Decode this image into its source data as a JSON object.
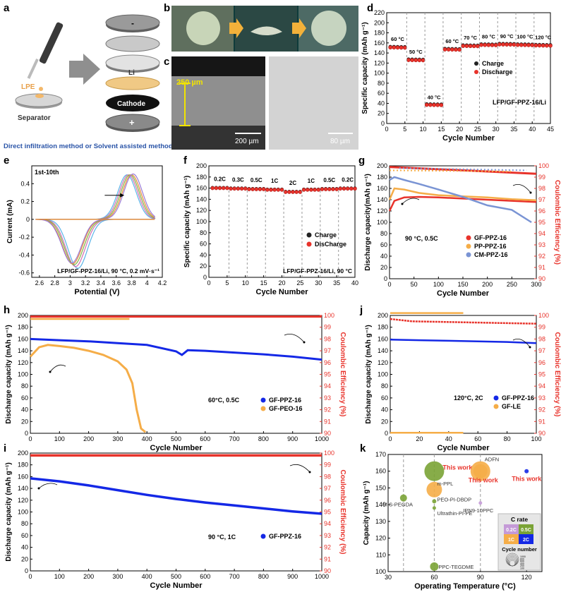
{
  "panels": {
    "a": {
      "letter": "a",
      "lpe": "LPE",
      "separator": "Separator",
      "li": "Li",
      "cathode": "Cathode",
      "minus": "-",
      "plus": "+",
      "caption": "Direct infiltration method or Solvent assisted method"
    },
    "b": {
      "letter": "b"
    },
    "c": {
      "letter": "c",
      "thickness": "250 µm",
      "scale_left": "200 µm",
      "scale_right": "80 µm"
    },
    "d": {
      "letter": "d"
    },
    "e": {
      "letter": "e"
    },
    "f": {
      "letter": "f"
    },
    "g": {
      "letter": "g"
    },
    "h": {
      "letter": "h"
    },
    "i": {
      "letter": "i"
    },
    "j": {
      "letter": "j"
    },
    "k": {
      "letter": "k"
    }
  },
  "chart_data": [
    {
      "id": "d",
      "type": "scatter",
      "ylabel": "Specific capacity (mAh g⁻¹)",
      "xlabel": "Cycle Number",
      "xlim": [
        0,
        45
      ],
      "ylim": [
        0,
        220
      ],
      "xticks": [
        0,
        5,
        10,
        15,
        20,
        25,
        30,
        35,
        40,
        45
      ],
      "yticks": [
        0,
        20,
        40,
        60,
        80,
        100,
        120,
        140,
        160,
        180,
        200,
        220
      ],
      "annotation": "LFP/GF-PPZ-16/Li",
      "legend": [
        "Charge",
        "Discharge"
      ],
      "segments": [
        {
          "label": "60 °C",
          "cycles": [
            1,
            5
          ],
          "value": 151
        },
        {
          "label": "50 °C",
          "cycles": [
            6,
            10
          ],
          "value": 126
        },
        {
          "label": "40 °C",
          "cycles": [
            11,
            15
          ],
          "value": 37
        },
        {
          "label": "60 °C",
          "cycles": [
            16,
            20
          ],
          "value": 147
        },
        {
          "label": "70 °C",
          "cycles": [
            21,
            25
          ],
          "value": 154
        },
        {
          "label": "80 °C",
          "cycles": [
            26,
            30
          ],
          "value": 156
        },
        {
          "label": "90 °C",
          "cycles": [
            31,
            35
          ],
          "value": 157
        },
        {
          "label": "100 °C",
          "cycles": [
            36,
            40
          ],
          "value": 156
        },
        {
          "label": "120 °C",
          "cycles": [
            41,
            45
          ],
          "value": 155
        }
      ]
    },
    {
      "id": "e",
      "type": "line",
      "ylabel": "Current (mA)",
      "xlabel": "Potential (V)",
      "xlim": [
        2.5,
        4.2
      ],
      "ylim": [
        -0.65,
        0.6
      ],
      "xticks": [
        2.6,
        2.8,
        3.0,
        3.2,
        3.4,
        3.6,
        3.8,
        4.0,
        4.2
      ],
      "yticks": [
        -0.6,
        -0.4,
        -0.2,
        0.0,
        0.2,
        0.4
      ],
      "annotation": "LFP/GF-PPZ-16/Li, 90 °C, 0.2 mV·s⁻¹",
      "label": "1st-10th",
      "series": [
        {
          "name": "1",
          "peak_red": 3.1,
          "min": -0.55,
          "peak_ox": 3.74,
          "max": 0.5
        },
        {
          "name": "2",
          "peak_red": 3.07,
          "min": -0.53,
          "peak_ox": 3.76,
          "max": 0.5
        },
        {
          "name": "3",
          "peak_red": 3.05,
          "min": -0.51,
          "peak_ox": 3.78,
          "max": 0.5
        },
        {
          "name": "4",
          "peak_red": 3.03,
          "min": -0.5,
          "peak_ox": 3.8,
          "max": 0.5
        },
        {
          "name": "5",
          "peak_red": 3.02,
          "min": -0.49,
          "peak_ox": 3.82,
          "max": 0.51
        }
      ]
    },
    {
      "id": "f",
      "type": "scatter",
      "ylabel": "Specific capacity (mAh g⁻¹)",
      "xlabel": "Cycle Number",
      "xlim": [
        0,
        40
      ],
      "ylim": [
        0,
        200
      ],
      "xticks": [
        0,
        5,
        10,
        15,
        20,
        25,
        30,
        35,
        40
      ],
      "yticks": [
        0,
        20,
        40,
        60,
        80,
        100,
        120,
        140,
        160,
        180,
        200
      ],
      "annotation": "LFP/GF-PPZ-16/Li, 90 °C",
      "legend": [
        "Charge",
        "DisCharge"
      ],
      "segments": [
        {
          "label": "0.2C",
          "cycles": [
            1,
            5
          ],
          "value": 160
        },
        {
          "label": "0.3C",
          "cycles": [
            6,
            10
          ],
          "value": 159
        },
        {
          "label": "0.5C",
          "cycles": [
            11,
            15
          ],
          "value": 158
        },
        {
          "label": "1C",
          "cycles": [
            16,
            20
          ],
          "value": 157
        },
        {
          "label": "2C",
          "cycles": [
            21,
            25
          ],
          "value": 153
        },
        {
          "label": "1C",
          "cycles": [
            26,
            30
          ],
          "value": 157
        },
        {
          "label": "0.5C",
          "cycles": [
            31,
            35
          ],
          "value": 158
        },
        {
          "label": "0.2C",
          "cycles": [
            36,
            40
          ],
          "value": 159
        }
      ]
    },
    {
      "id": "g",
      "type": "line",
      "ylabel": "Discharge capacity(mAh g⁻¹)",
      "ylabel2": "Coulombic Efficiency (%)",
      "xlabel": "Cycle Number",
      "xlim": [
        0,
        300
      ],
      "ylim": [
        0,
        200
      ],
      "ylim2": [
        90,
        100
      ],
      "xticks": [
        0,
        50,
        100,
        150,
        200,
        250,
        300
      ],
      "yticks": [
        0,
        20,
        40,
        60,
        80,
        100,
        120,
        140,
        160,
        180,
        200
      ],
      "yticks2": [
        90,
        91,
        92,
        93,
        94,
        95,
        96,
        97,
        98,
        99,
        100
      ],
      "annotation": "90 °C, 0.5C",
      "series": [
        {
          "name": "GF-PPZ-16",
          "color": "#e8332b",
          "x": [
            0,
            10,
            30,
            60,
            100,
            150,
            200,
            250,
            300
          ],
          "y": [
            120,
            138,
            144,
            145,
            144,
            142,
            140,
            138,
            136
          ]
        },
        {
          "name": "PP-PPZ-16",
          "color": "#f5ad48",
          "x": [
            0,
            10,
            30,
            60,
            100,
            150,
            200,
            250,
            300
          ],
          "y": [
            140,
            160,
            158,
            152,
            148,
            146,
            144,
            141,
            139
          ]
        },
        {
          "name": "CM-PPZ-16",
          "color": "#7a94d4",
          "x": [
            0,
            10,
            30,
            60,
            100,
            150,
            200,
            250,
            290
          ],
          "y": [
            175,
            180,
            175,
            168,
            158,
            145,
            130,
            122,
            100
          ]
        }
      ]
    },
    {
      "id": "h",
      "type": "line",
      "ylabel": "Discharge capacity (mAh g⁻¹)",
      "ylabel2": "Coulombic Efficiency (%)",
      "xlabel": "Cycle Number",
      "xlim": [
        0,
        1000
      ],
      "ylim": [
        0,
        200
      ],
      "ylim2": [
        90,
        100
      ],
      "xticks": [
        0,
        100,
        200,
        300,
        400,
        500,
        600,
        700,
        800,
        900,
        1000
      ],
      "yticks": [
        0,
        20,
        40,
        60,
        80,
        100,
        120,
        140,
        160,
        180,
        200
      ],
      "yticks2": [
        90,
        91,
        92,
        93,
        94,
        95,
        96,
        97,
        98,
        99,
        100
      ],
      "annotation": "60°C, 0.5C",
      "series": [
        {
          "name": "GF-PPZ-16",
          "color": "#1428e6",
          "x": [
            0,
            100,
            200,
            300,
            400,
            500,
            520,
            540,
            600,
            700,
            800,
            900,
            1000
          ],
          "y": [
            160,
            158,
            156,
            153,
            150,
            139,
            133,
            141,
            140,
            137,
            134,
            130,
            125
          ]
        },
        {
          "name": "GF-PEO-16",
          "color": "#f5ad48",
          "x": [
            0,
            30,
            60,
            100,
            150,
            200,
            250,
            300,
            330,
            350,
            365,
            380,
            395
          ],
          "y": [
            130,
            146,
            150,
            148,
            145,
            140,
            133,
            122,
            108,
            85,
            40,
            8,
            2
          ]
        }
      ]
    },
    {
      "id": "i",
      "type": "line",
      "ylabel": "Discharge capacity (mAh g⁻¹)",
      "ylabel2": "Coulombic Efficiency (%)",
      "xlabel": "Cycle Number",
      "xlim": [
        0,
        1000
      ],
      "ylim": [
        0,
        200
      ],
      "ylim2": [
        90,
        100
      ],
      "xticks": [
        0,
        100,
        200,
        300,
        400,
        500,
        600,
        700,
        800,
        900,
        1000
      ],
      "yticks": [
        0,
        20,
        40,
        60,
        80,
        100,
        120,
        140,
        160,
        180,
        200
      ],
      "yticks2": [
        90,
        91,
        92,
        93,
        94,
        95,
        96,
        97,
        98,
        99,
        100
      ],
      "annotation": "90 °C, 1C",
      "series": [
        {
          "name": "GF-PPZ-16",
          "color": "#1428e6",
          "x": [
            0,
            100,
            200,
            300,
            400,
            500,
            600,
            700,
            800,
            900,
            1000
          ],
          "y": [
            157,
            152,
            145,
            137,
            129,
            122,
            116,
            111,
            106,
            101,
            97
          ]
        }
      ]
    },
    {
      "id": "j",
      "type": "line",
      "ylabel": "Discharge capacity (mAh g⁻¹)",
      "ylabel2": "Coulombic Efficiency (%)",
      "xlabel": "Cycle Number",
      "xlim": [
        0,
        100
      ],
      "ylim": [
        0,
        200
      ],
      "ylim2": [
        90,
        100
      ],
      "xticks": [
        0,
        20,
        40,
        60,
        80,
        100
      ],
      "yticks": [
        0,
        20,
        40,
        60,
        80,
        100,
        120,
        140,
        160,
        180,
        200
      ],
      "yticks2": [
        90,
        91,
        92,
        93,
        94,
        95,
        96,
        97,
        98,
        99,
        100
      ],
      "annotation": "120°C, 2C",
      "series": [
        {
          "name": "GF-PPZ-16",
          "color": "#1428e6",
          "x": [
            0,
            20,
            40,
            60,
            80,
            100
          ],
          "y": [
            159,
            158,
            157,
            156,
            155,
            153
          ]
        },
        {
          "name": "GF-LE",
          "color": "#f5ad48",
          "x": [
            0,
            50
          ],
          "y": [
            1,
            1
          ]
        }
      ]
    },
    {
      "id": "k",
      "type": "scatter",
      "ylabel": "Capacity (mAh g⁻¹)",
      "xlabel": "Operating Temperature (°C)",
      "xlim": [
        30,
        130
      ],
      "ylim": [
        100,
        170
      ],
      "xticks": [
        30,
        60,
        90,
        120
      ],
      "yticks": [
        100,
        110,
        120,
        130,
        140,
        150,
        160,
        170
      ],
      "points": [
        {
          "name": "This work",
          "x": 60,
          "y": 160,
          "color": "#7aa335",
          "highlight": true
        },
        {
          "name": "This work",
          "x": 90,
          "y": 160,
          "color": "#f5ad48",
          "highlight": true
        },
        {
          "name": "This work",
          "x": 120,
          "y": 160,
          "color": "#1428e6",
          "highlight": true
        },
        {
          "name": "ADFN",
          "x": 90,
          "y": 160,
          "color": "#f5ad48"
        },
        {
          "name": "m-PPL",
          "x": 60,
          "y": 149,
          "color": "#f5ad48"
        },
        {
          "name": "M-S-PEGDA",
          "x": 40,
          "y": 144,
          "color": "#7aa335"
        },
        {
          "name": "PEO-PI-DBDP",
          "x": 60,
          "y": 142,
          "color": "#7aa335"
        },
        {
          "name": "Ultrathin-PI-PE",
          "x": 60,
          "y": 138,
          "color": "#7aa335"
        },
        {
          "name": "IPN9-10PPC",
          "x": 90,
          "y": 141,
          "color": "#c49ad7"
        },
        {
          "name": "PPC-TEGDME",
          "x": 60,
          "y": 103,
          "color": "#7aa335"
        }
      ],
      "legend": {
        "title": "C rate",
        "items": [
          "0.2C",
          "0.5C",
          "1C",
          "2C"
        ],
        "cycles_title": "Cycle number",
        "cycles": [
          "1000",
          "800",
          "600",
          "400",
          "200",
          "100"
        ]
      }
    }
  ],
  "colors": {
    "red": "#e8332b",
    "orange": "#f5ad48",
    "blue": "#1428e6",
    "green": "#7aa335",
    "purple": "#c49ad7"
  }
}
